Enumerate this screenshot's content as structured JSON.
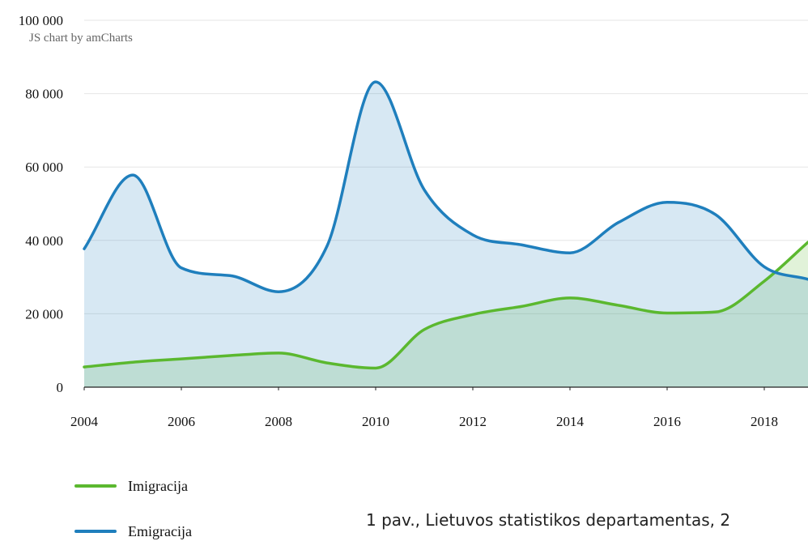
{
  "credit": "JS chart by amCharts",
  "caption": "1 pav., Lietuvos statistikos departamentas, 2",
  "chart_data": {
    "type": "area",
    "title": "",
    "xlabel": "",
    "ylabel": "",
    "xlim": [
      2004,
      2018.9
    ],
    "ylim": [
      0,
      100000
    ],
    "x_ticks": [
      "2004",
      "2006",
      "2008",
      "2010",
      "2012",
      "2014",
      "2016",
      "2018"
    ],
    "y_ticks": [
      "0",
      "20 000",
      "40 000",
      "60 000",
      "80 000",
      "100 000"
    ],
    "grid": true,
    "legend": "bottom-left",
    "x": [
      2004,
      2005,
      2006,
      2007,
      2008,
      2009,
      2010,
      2011,
      2012,
      2013,
      2014,
      2015,
      2016,
      2017,
      2018,
      2018.9
    ],
    "series": [
      {
        "name": "Imigracija",
        "color": "#5bb82f",
        "fill": "#e2f2d8",
        "values": [
          5500,
          6800,
          7700,
          8600,
          9300,
          6600,
          5200,
          15700,
          19800,
          22000,
          24300,
          22300,
          20200,
          20500,
          28900,
          39500
        ]
      },
      {
        "name": "Emigracija",
        "color": "#1f7fbd",
        "fill": "#d4e6f2",
        "values": [
          37700,
          57800,
          32500,
          30400,
          26000,
          38500,
          83200,
          53800,
          41500,
          38800,
          36600,
          44900,
          50400,
          47000,
          32800,
          29400
        ]
      }
    ]
  }
}
